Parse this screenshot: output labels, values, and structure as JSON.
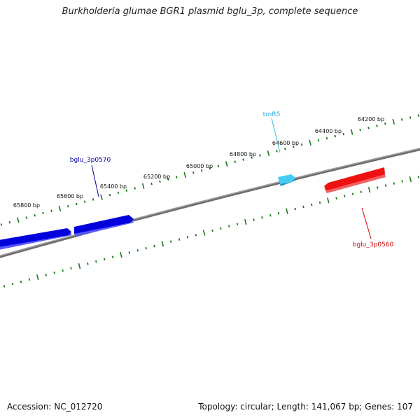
{
  "title": "Burkholderia glumae BGR1 plasmid bglu_3p, complete sequence",
  "footer": {
    "accession_label": "Accession:",
    "accession": "NC_012720",
    "topology_label": "Topology:",
    "topology": "circular;",
    "length_label": "Length:",
    "length": "141,067 bp;",
    "genes_label": "Genes:",
    "genes": "107"
  },
  "scale": {
    "unit": "bp",
    "labels": [
      "64200 bp",
      "64400 bp",
      "64600 bp",
      "64800 bp",
      "65000 bp",
      "65200 bp",
      "65400 bp",
      "65600 bp",
      "65800 bp"
    ]
  },
  "features": [
    {
      "label": "trnR5",
      "color": "#33bbee",
      "strand": "+",
      "type": "tRNA"
    },
    {
      "label": "bglu_3p0570",
      "color": "#0000dd",
      "strand": "+",
      "type": "CDS"
    },
    {
      "label": "bglu_3p0560",
      "color": "#ee1111",
      "strand": "-",
      "type": "CDS"
    }
  ],
  "colors": {
    "backbone": "#808080",
    "ticks": "#1a7a1a",
    "plus_strand": "#0000dd",
    "minus_strand": "#ee1111",
    "trna": "#33bbee"
  }
}
